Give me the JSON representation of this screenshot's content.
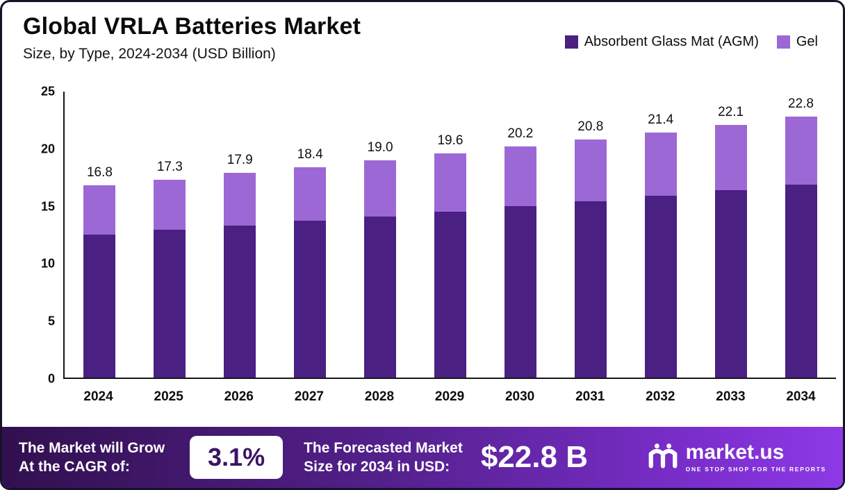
{
  "header": {
    "title": "Global VRLA Batteries Market",
    "subtitle": "Size, by Type, 2024-2034 (USD Billion)"
  },
  "chart_data": {
    "type": "bar",
    "stacked": true,
    "title": "Global VRLA Batteries Market",
    "subtitle": "Size, by Type, 2024-2034 (USD Billion)",
    "unit": "USD Billion",
    "categories": [
      "2024",
      "2025",
      "2026",
      "2027",
      "2028",
      "2029",
      "2030",
      "2031",
      "2032",
      "2033",
      "2034"
    ],
    "series": [
      {
        "name": "Absorbent Glass Mat (AGM)",
        "color": "#4a2083",
        "values": [
          12.5,
          12.9,
          13.3,
          13.7,
          14.1,
          14.5,
          15.0,
          15.4,
          15.9,
          16.4,
          16.9
        ]
      },
      {
        "name": "Gel",
        "color": "#9c68d6",
        "values": [
          4.3,
          4.4,
          4.6,
          4.7,
          4.9,
          5.1,
          5.2,
          5.4,
          5.5,
          5.7,
          5.9
        ]
      }
    ],
    "totals": [
      16.8,
      17.3,
      17.9,
      18.4,
      19.0,
      19.6,
      20.2,
      20.8,
      21.4,
      22.1,
      22.8
    ],
    "total_labels": [
      "16.8",
      "17.3",
      "17.9",
      "18.4",
      "19.0",
      "19.6",
      "20.2",
      "20.8",
      "21.4",
      "22.1",
      "22.8"
    ],
    "ylim": [
      0,
      25
    ],
    "yticks": [
      0,
      5,
      10,
      15,
      20,
      25
    ],
    "grid": false,
    "legend_position": "top-right"
  },
  "footer": {
    "cagr_line1": "The Market will Grow",
    "cagr_line2": "At the CAGR of:",
    "cagr_value": "3.1%",
    "forecast_line1": "The Forecasted Market",
    "forecast_line2": "Size for 2034 in USD:",
    "forecast_value": "$22.8 B",
    "brand_name": "market.us",
    "brand_tagline": "ONE STOP SHOP FOR THE REPORTS"
  }
}
